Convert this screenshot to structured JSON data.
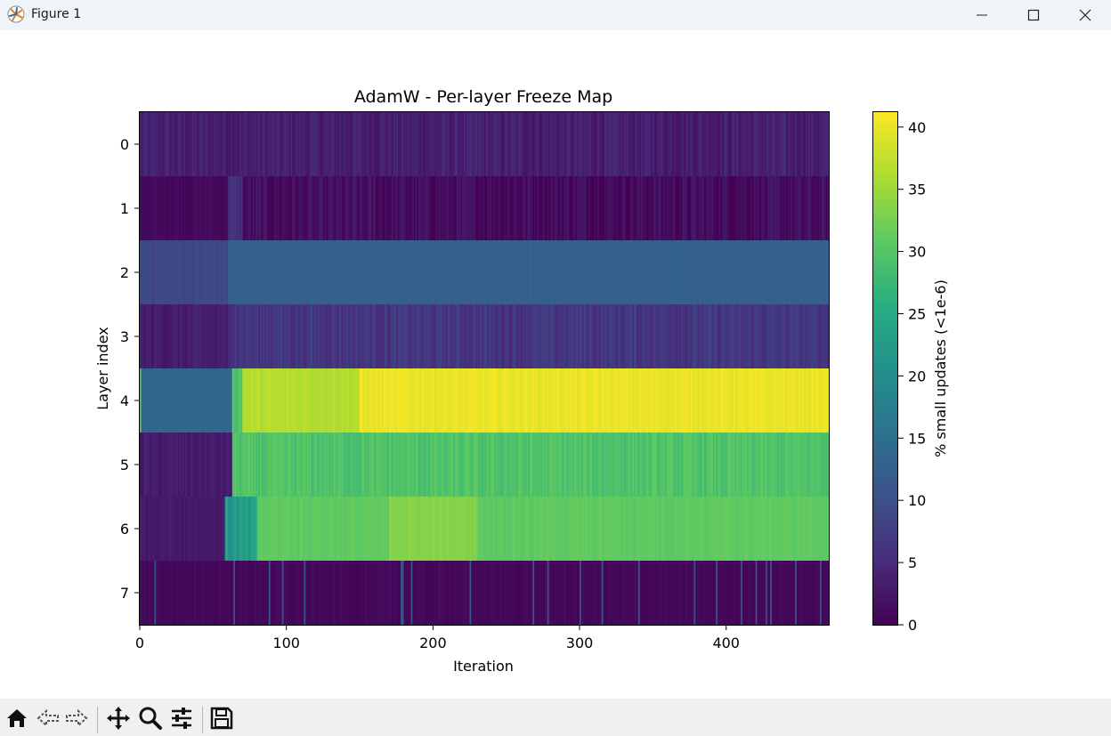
{
  "window": {
    "title": "Figure 1",
    "icons": [
      "matplotlib-logo-icon",
      "minimize-icon",
      "maximize-icon",
      "close-icon"
    ]
  },
  "toolbar": {
    "buttons": [
      "home-icon",
      "back-icon",
      "forward-icon",
      "pan-icon",
      "zoom-icon",
      "configure-subplots-icon",
      "save-icon"
    ]
  },
  "colors": {
    "viridis_0": "#440154",
    "viridis_25": "#3b528b",
    "viridis_50": "#21918c",
    "viridis_75": "#5ec962",
    "viridis_100": "#fde725",
    "titlebar": "#eff4f9",
    "toolbar": "#f0f0f0"
  },
  "chart_data": {
    "type": "heatmap",
    "title": "AdamW - Per-layer Freeze Map",
    "xlabel": "Iteration",
    "ylabel": "Layer index",
    "colorbar_label": "% small updates (<1e-6)",
    "colormap": "viridis",
    "xlim": [
      0,
      470
    ],
    "x_ticks": [
      0,
      100,
      200,
      300,
      400
    ],
    "y_categories": [
      "0",
      "1",
      "2",
      "3",
      "4",
      "5",
      "6",
      "7"
    ],
    "clim": [
      0,
      41.2
    ],
    "colorbar_ticks": [
      0,
      5,
      10,
      15,
      20,
      25,
      30,
      35,
      40
    ],
    "rows": [
      {
        "layer": "0",
        "segments": [
          {
            "from": 0,
            "to": 470,
            "value": 3.5,
            "noise": 1.6
          }
        ]
      },
      {
        "layer": "1",
        "segments": [
          {
            "from": 0,
            "to": 60,
            "value": 1.0,
            "noise": 0.6
          },
          {
            "from": 60,
            "to": 70,
            "value": 5.5,
            "noise": 1.2
          },
          {
            "from": 70,
            "to": 470,
            "value": 1.3,
            "noise": 1.8
          }
        ]
      },
      {
        "layer": "2",
        "segments": [
          {
            "from": 0,
            "to": 60,
            "value": 9.0,
            "noise": 0.8
          },
          {
            "from": 60,
            "to": 470,
            "value": 12.6,
            "noise": 0.4
          }
        ]
      },
      {
        "layer": "3",
        "segments": [
          {
            "from": 0,
            "to": 60,
            "value": 3.2,
            "noise": 1.4
          },
          {
            "from": 60,
            "to": 470,
            "value": 6.5,
            "noise": 1.8
          }
        ]
      },
      {
        "layer": "4",
        "segments": [
          {
            "from": 0,
            "to": 1,
            "value": 30,
            "noise": 0
          },
          {
            "from": 1,
            "to": 63,
            "value": 13.5,
            "noise": 0.3
          },
          {
            "from": 63,
            "to": 70,
            "value": 30,
            "noise": 2
          },
          {
            "from": 70,
            "to": 150,
            "value": 36.5,
            "noise": 0.8
          },
          {
            "from": 150,
            "to": 470,
            "value": 40.0,
            "noise": 0.8
          }
        ]
      },
      {
        "layer": "5",
        "segments": [
          {
            "from": 0,
            "to": 63,
            "value": 3.0,
            "noise": 1.2
          },
          {
            "from": 63,
            "to": 470,
            "value": 29.5,
            "noise": 1.6
          }
        ]
      },
      {
        "layer": "6",
        "segments": [
          {
            "from": 0,
            "to": 58,
            "value": 3.0,
            "noise": 0.8
          },
          {
            "from": 58,
            "to": 80,
            "value": 22,
            "noise": 3
          },
          {
            "from": 80,
            "to": 170,
            "value": 31.0,
            "noise": 0.6
          },
          {
            "from": 170,
            "to": 230,
            "value": 33.5,
            "noise": 0.6
          },
          {
            "from": 230,
            "to": 470,
            "value": 31.0,
            "noise": 0.6
          }
        ]
      },
      {
        "layer": "7",
        "segments": [
          {
            "from": 0,
            "to": 470,
            "value": 0.8,
            "noise": 0.5,
            "spikes": [
              10,
              64,
              88,
              97,
              112,
              178,
              179,
              185,
              225,
              268,
              278,
              300,
              315,
              340,
              378,
              393,
              410,
              420,
              427,
              430,
              447,
              464
            ]
          }
        ]
      }
    ]
  }
}
